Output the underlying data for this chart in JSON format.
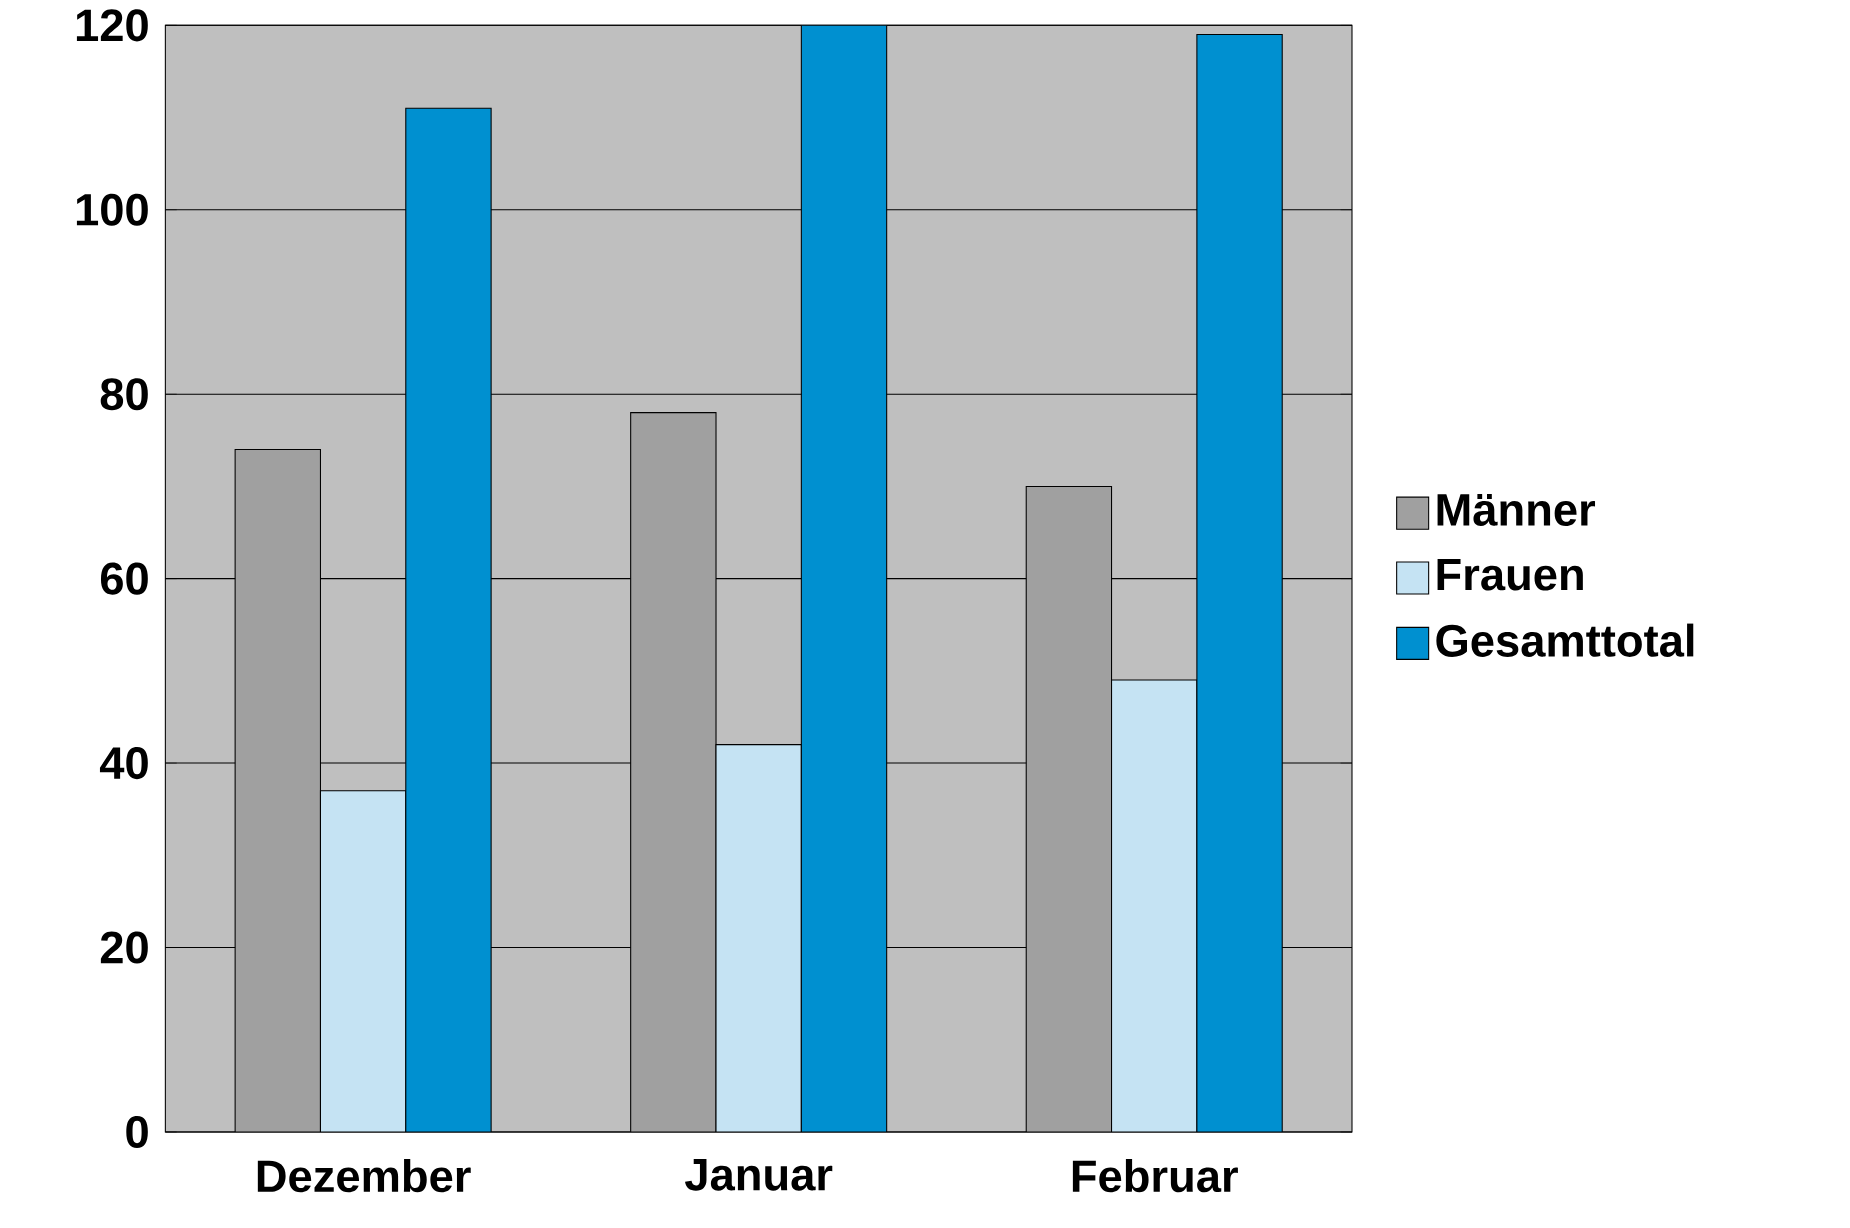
{
  "chart_data": {
    "type": "bar",
    "categories": [
      "Dezember",
      "Januar",
      "Februar"
    ],
    "series": [
      {
        "name": "Männer",
        "color": "#a0a0a0",
        "values": [
          74,
          78,
          70
        ]
      },
      {
        "name": "Frauen",
        "color": "#c5e3f3",
        "values": [
          37,
          42,
          49
        ]
      },
      {
        "name": "Gesamttotal",
        "color": "#0090d0",
        "values": [
          111,
          120,
          119
        ]
      }
    ],
    "ylim": [
      0,
      120
    ],
    "yticks": [
      0,
      20,
      40,
      60,
      80,
      100,
      120
    ],
    "grid": "y",
    "legend": "right"
  }
}
